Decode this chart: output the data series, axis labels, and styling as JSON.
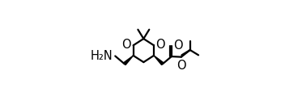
{
  "bg_color": "#ffffff",
  "line_color": "#000000",
  "line_width": 1.6,
  "font_size": 10.5,
  "figsize": [
    3.73,
    1.29
  ],
  "dpi": 100,
  "xlim": [
    -0.05,
    1.0
  ],
  "ylim": [
    -0.05,
    1.05
  ]
}
